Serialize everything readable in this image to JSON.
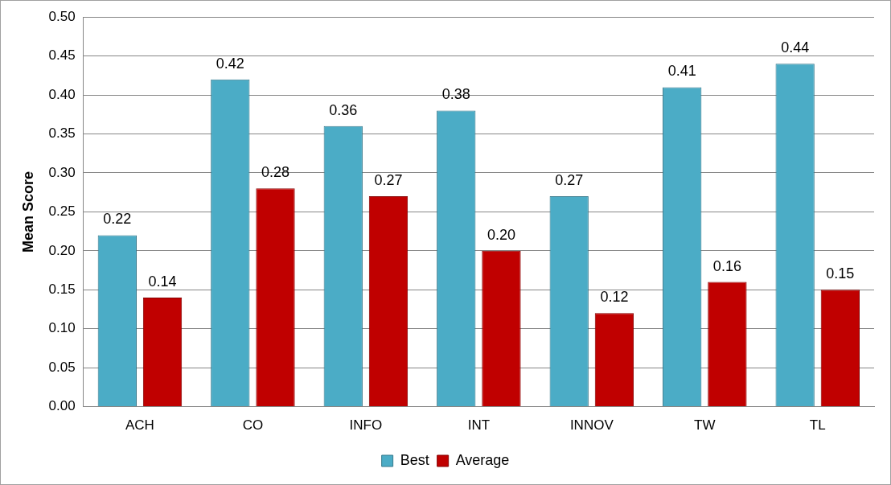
{
  "chart_data": {
    "type": "bar",
    "ylabel": "Mean Score",
    "categories": [
      "ACH",
      "CO",
      "INFO",
      "INT",
      "INNOV",
      "TW",
      "TL"
    ],
    "series": [
      {
        "name": "Best",
        "color": "#4bacc6",
        "values": [
          0.22,
          0.42,
          0.36,
          0.38,
          0.27,
          0.41,
          0.44
        ],
        "value_labels": [
          "0.22",
          "0.42",
          "0.36",
          "0.38",
          "0.27",
          "0.41",
          "0.44"
        ]
      },
      {
        "name": "Average",
        "color": "#c00000",
        "values": [
          0.14,
          0.28,
          0.27,
          0.2,
          0.12,
          0.16,
          0.15
        ],
        "value_labels": [
          "0.14",
          "0.28",
          "0.27",
          "0.20",
          "0.12",
          "0.16",
          "0.15"
        ]
      }
    ],
    "ylim": [
      0,
      0.5
    ],
    "yticks": [
      {
        "value": 0,
        "label": "0.00"
      },
      {
        "value": 0.05,
        "label": "0.05"
      },
      {
        "value": 0.1,
        "label": "0.10"
      },
      {
        "value": 0.15,
        "label": "0.15"
      },
      {
        "value": 0.2,
        "label": "0.20"
      },
      {
        "value": 0.25,
        "label": "0.25"
      },
      {
        "value": 0.3,
        "label": "0.30"
      },
      {
        "value": 0.35,
        "label": "0.35"
      },
      {
        "value": 0.4,
        "label": "0.40"
      },
      {
        "value": 0.45,
        "label": "0.45"
      },
      {
        "value": 0.5,
        "label": "0.50"
      }
    ],
    "grid": "y",
    "legend": "bottom"
  }
}
